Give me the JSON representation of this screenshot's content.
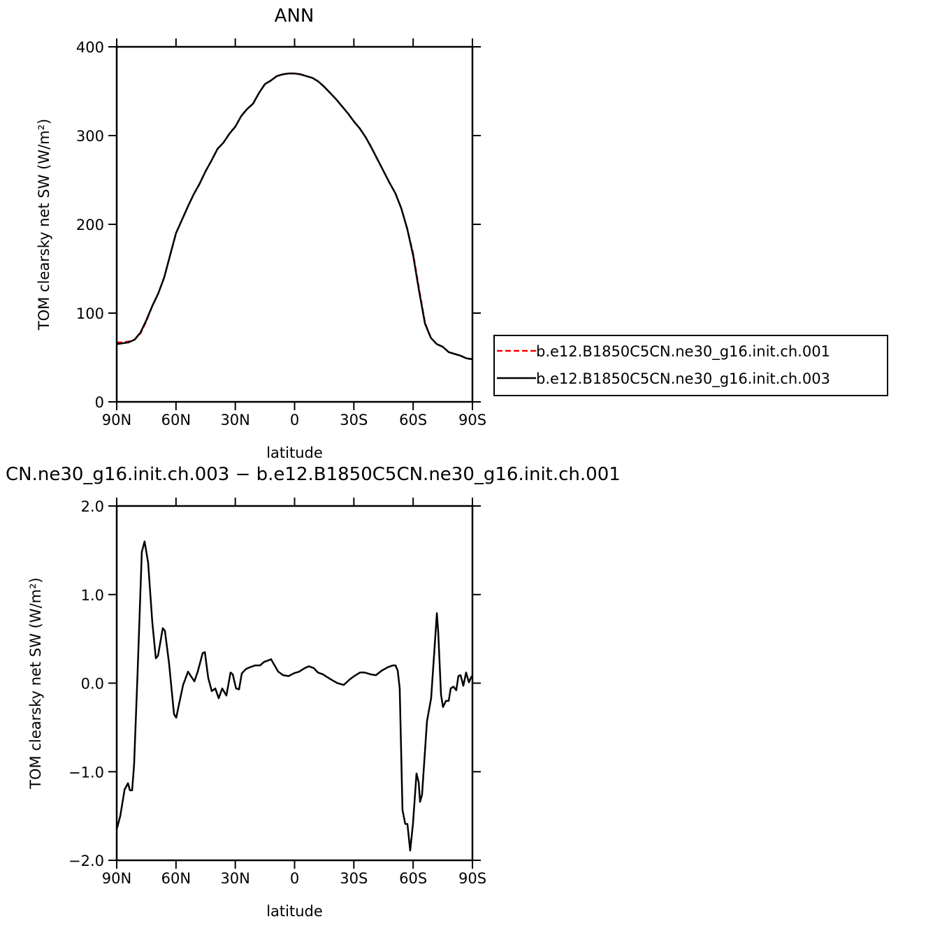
{
  "chart_data": [
    {
      "type": "line",
      "title": "ANN",
      "xlabel": "latitude",
      "ylabel": "TOM clearsky net SW (W/m²)",
      "x": [
        90,
        87,
        84,
        81,
        78,
        75,
        72,
        69,
        66,
        63,
        60,
        57,
        54,
        51,
        48,
        45,
        42,
        39,
        36,
        33,
        30,
        27,
        24,
        21,
        18,
        15,
        12,
        9,
        6,
        3,
        0,
        -3,
        -6,
        -9,
        -12,
        -15,
        -18,
        -21,
        -24,
        -27,
        -30,
        -33,
        -36,
        -39,
        -42,
        -45,
        -48,
        -51,
        -54,
        -57,
        -60,
        -63,
        -66,
        -69,
        -72,
        -75,
        -78,
        -81,
        -84,
        -87,
        -90
      ],
      "xlim": [
        90,
        -90
      ],
      "xticks": [
        {
          "value": 90,
          "label": "90N"
        },
        {
          "value": 60,
          "label": "60N"
        },
        {
          "value": 30,
          "label": "30N"
        },
        0,
        {
          "value": -30,
          "label": "30S"
        },
        {
          "value": -60,
          "label": "60S"
        },
        {
          "value": -90,
          "label": "90S"
        }
      ],
      "ylim": [
        0,
        400
      ],
      "yticks": [
        0,
        100,
        200,
        300,
        400
      ],
      "legend": "right",
      "series": [
        {
          "name": "b.e12.B1850C5CN.ne30_g16.init.ch.001",
          "color": "#ff0000",
          "style": "dashed",
          "values": [
            67,
            67,
            68,
            70,
            77,
            91,
            108,
            122,
            140,
            165,
            190,
            205,
            220,
            234,
            246,
            260,
            272,
            285,
            292,
            302,
            310,
            322,
            330,
            336,
            348,
            358,
            362,
            367,
            369,
            370,
            370,
            369,
            367,
            365,
            361,
            355,
            348,
            341,
            333,
            325,
            316,
            308,
            298,
            286,
            273,
            260,
            247,
            235,
            218,
            195,
            167,
            127,
            89,
            72,
            65,
            62,
            56,
            54,
            52,
            49,
            48
          ]
        },
        {
          "name": "b.e12.B1850C5CN.ne30_g16.init.ch.003",
          "color": "#000000",
          "style": "solid",
          "values": [
            65,
            66,
            67,
            70,
            78,
            92,
            108,
            122,
            140,
            165,
            190,
            205,
            220,
            234,
            246,
            260,
            272,
            285,
            292,
            302,
            310,
            322,
            330,
            336,
            348,
            358,
            362,
            367,
            369,
            370,
            370,
            369,
            367,
            365,
            361,
            355,
            348,
            341,
            333,
            325,
            316,
            308,
            298,
            286,
            273,
            260,
            247,
            235,
            218,
            195,
            165,
            125,
            88,
            72,
            65,
            62,
            56,
            54,
            52,
            49,
            48
          ]
        }
      ]
    },
    {
      "type": "line",
      "title": "CN.ne30_g16.init.ch.003 − b.e12.B1850C5CN.ne30_g16.init.ch.001",
      "xlabel": "latitude",
      "ylabel": "TOM clearsky net SW (W/m²)",
      "x": [
        90,
        88.2,
        86,
        84.3,
        83.3,
        82.2,
        81.2,
        79.4,
        77.3,
        75.9,
        74.1,
        72,
        70.2,
        69.1,
        66.7,
        65.6,
        63.5,
        61,
        59.9,
        58.2,
        56.4,
        53.9,
        52.5,
        50.7,
        49,
        46.5,
        45.4,
        43.7,
        41.9,
        40.1,
        38.4,
        36.6,
        34.5,
        32.4,
        31.3,
        29.6,
        28.1,
        26.7,
        24.6,
        22.5,
        20,
        17.5,
        15.4,
        12.9,
        11.9,
        10.1,
        8.3,
        5.8,
        3,
        0.5,
        -2.3,
        -5.2,
        -7.2,
        -9.7,
        -11.8,
        -14.3,
        -17.1,
        -19.3,
        -21.7,
        -24.9,
        -27.8,
        -30.2,
        -33.1,
        -35.5,
        -38.4,
        -41.2,
        -44,
        -47.2,
        -49.7,
        -51.1,
        -52.2,
        -53.2,
        -54.6,
        -56,
        -57.1,
        -58.5,
        -59.9,
        -61.7,
        -62.8,
        -63.5,
        -64.5,
        -67,
        -69.1,
        -70.9,
        -72,
        -72.7,
        -74.1,
        -75.1,
        -76.6,
        -78,
        -79,
        -80.4,
        -81.8,
        -82.9,
        -84,
        -85.4,
        -86.8,
        -88.2,
        -89.6
      ],
      "xlim": [
        90,
        -90
      ],
      "xticks": [
        {
          "value": 90,
          "label": "90N"
        },
        {
          "value": 60,
          "label": "60N"
        },
        {
          "value": 30,
          "label": "30N"
        },
        0,
        {
          "value": -30,
          "label": "30S"
        },
        {
          "value": -60,
          "label": "60S"
        },
        {
          "value": -90,
          "label": "90S"
        }
      ],
      "ylim": [
        -2,
        2
      ],
      "yticks": [
        {
          "value": -2,
          "label": "−2.0"
        },
        {
          "value": -1,
          "label": "−1.0"
        },
        {
          "value": 0,
          "label": "0.0"
        },
        {
          "value": 1,
          "label": "1.0"
        },
        {
          "value": 2,
          "label": "2.0"
        }
      ],
      "series": [
        {
          "color": "#000000",
          "style": "solid",
          "values": [
            -1.65,
            -1.5,
            -1.2,
            -1.13,
            -1.21,
            -1.21,
            -0.92,
            0.14,
            1.48,
            1.6,
            1.36,
            0.69,
            0.28,
            0.31,
            0.62,
            0.59,
            0.22,
            -0.35,
            -0.39,
            -0.21,
            -0.02,
            0.13,
            0.08,
            0.02,
            0.13,
            0.34,
            0.35,
            0.06,
            -0.09,
            -0.06,
            -0.17,
            -0.06,
            -0.14,
            0.12,
            0.1,
            -0.06,
            -0.07,
            0.11,
            0.16,
            0.18,
            0.2,
            0.2,
            0.24,
            0.26,
            0.27,
            0.2,
            0.13,
            0.09,
            0.08,
            0.11,
            0.13,
            0.17,
            0.19,
            0.17,
            0.12,
            0.1,
            0.06,
            0.03,
            0,
            -0.02,
            0.04,
            0.08,
            0.12,
            0.12,
            0.1,
            0.09,
            0.14,
            0.18,
            0.2,
            0.2,
            0.14,
            -0.06,
            -1.43,
            -1.59,
            -1.59,
            -1.89,
            -1.59,
            -1.02,
            -1.12,
            -1.34,
            -1.26,
            -0.43,
            -0.17,
            0.42,
            0.79,
            0.57,
            -0.13,
            -0.27,
            -0.2,
            -0.2,
            -0.06,
            -0.04,
            -0.08,
            0.08,
            0.09,
            -0.03,
            0.12,
            0.01,
            0.08
          ]
        }
      ]
    }
  ]
}
